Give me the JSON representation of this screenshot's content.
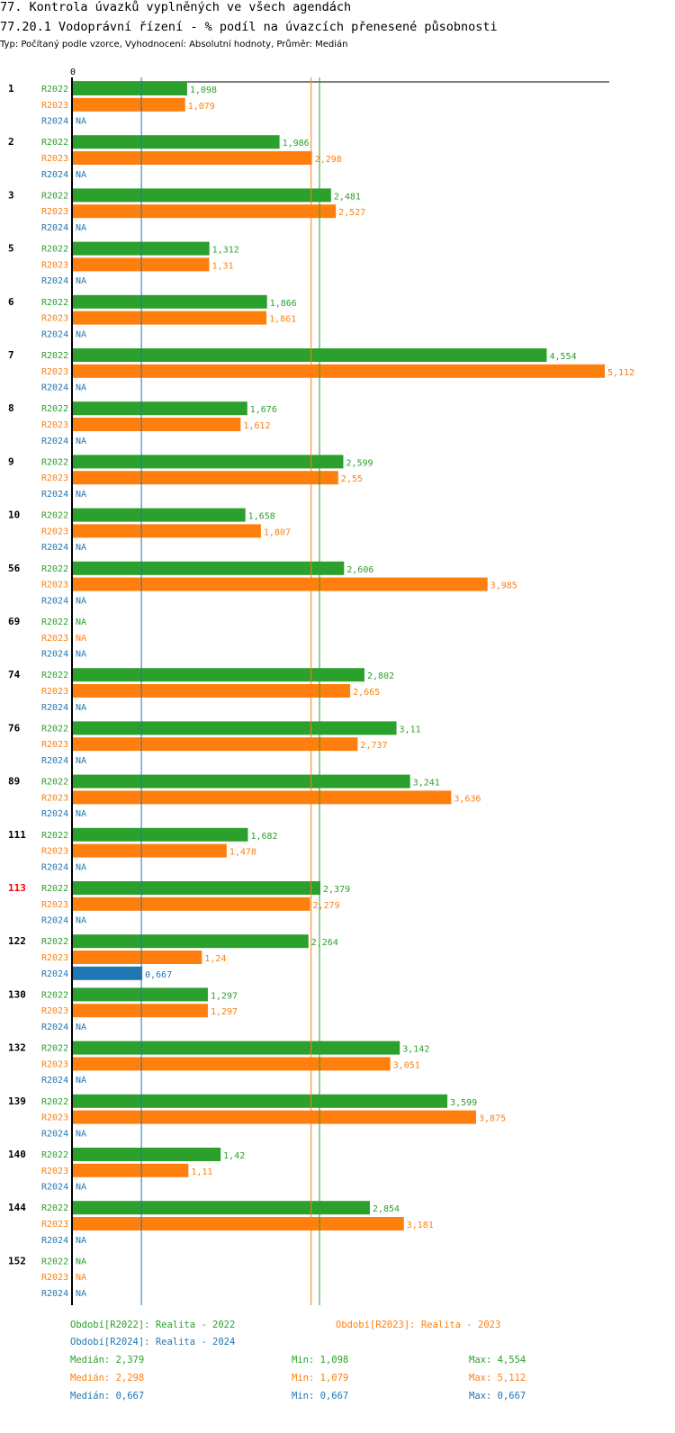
{
  "header": {
    "title": "77. Kontrola úvazků vyplněných ve všech agendách",
    "subtitle": "77.20.1 Vodoprávní řízení - % podíl na úvazcích přenesené působnosti",
    "type_line": "Typ: Počítaný podle vzorce, Vyhodnocení: Absolutní hodnoty, Průměr: Medián"
  },
  "chart_data": {
    "type": "bar",
    "orientation": "horizontal",
    "axis_zero_label": "0",
    "xlim": [
      0,
      5.112
    ],
    "colors": {
      "R2022": "#2ca02c",
      "R2023": "#ff7f0e",
      "R2024": "#1f77b4",
      "highlight": "#ff0000"
    },
    "highlight_group": "113",
    "na_label": "NA",
    "series_names": [
      "R2022",
      "R2023",
      "R2024"
    ],
    "medians": {
      "R2022": 2.379,
      "R2023": 2.298,
      "R2024": 0.667
    },
    "groups": [
      {
        "label": "1",
        "R2022": "1,098",
        "R2023": "1,079",
        "R2024": "NA"
      },
      {
        "label": "2",
        "R2022": "1,986",
        "R2023": "2,298",
        "R2024": "NA"
      },
      {
        "label": "3",
        "R2022": "2,481",
        "R2023": "2,527",
        "R2024": "NA"
      },
      {
        "label": "5",
        "R2022": "1,312",
        "R2023": "1,31",
        "R2024": "NA"
      },
      {
        "label": "6",
        "R2022": "1,866",
        "R2023": "1,861",
        "R2024": "NA"
      },
      {
        "label": "7",
        "R2022": "4,554",
        "R2023": "5,112",
        "R2024": "NA"
      },
      {
        "label": "8",
        "R2022": "1,676",
        "R2023": "1,612",
        "R2024": "NA"
      },
      {
        "label": "9",
        "R2022": "2,599",
        "R2023": "2,55",
        "R2024": "NA"
      },
      {
        "label": "10",
        "R2022": "1,658",
        "R2023": "1,807",
        "R2024": "NA"
      },
      {
        "label": "56",
        "R2022": "2,606",
        "R2023": "3,985",
        "R2024": "NA"
      },
      {
        "label": "69",
        "R2022": "NA",
        "R2023": "NA",
        "R2024": "NA"
      },
      {
        "label": "74",
        "R2022": "2,802",
        "R2023": "2,665",
        "R2024": "NA"
      },
      {
        "label": "76",
        "R2022": "3,11",
        "R2023": "2,737",
        "R2024": "NA"
      },
      {
        "label": "89",
        "R2022": "3,241",
        "R2023": "3,636",
        "R2024": "NA"
      },
      {
        "label": "111",
        "R2022": "1,682",
        "R2023": "1,478",
        "R2024": "NA"
      },
      {
        "label": "113",
        "R2022": "2,379",
        "R2023": "2,279",
        "R2024": "NA"
      },
      {
        "label": "122",
        "R2022": "2,264",
        "R2023": "1,24",
        "R2024": "0,667"
      },
      {
        "label": "130",
        "R2022": "1,297",
        "R2023": "1,297",
        "R2024": "NA"
      },
      {
        "label": "132",
        "R2022": "3,142",
        "R2023": "3,051",
        "R2024": "NA"
      },
      {
        "label": "139",
        "R2022": "3,599",
        "R2023": "3,875",
        "R2024": "NA"
      },
      {
        "label": "140",
        "R2022": "1,42",
        "R2023": "1,11",
        "R2024": "NA"
      },
      {
        "label": "144",
        "R2022": "2,854",
        "R2023": "3,181",
        "R2024": "NA"
      },
      {
        "label": "152",
        "R2022": "NA",
        "R2023": "NA",
        "R2024": "NA"
      }
    ]
  },
  "legend": {
    "r2022": "Období[R2022]: Realita - 2022",
    "r2023": "Období[R2023]: Realita - 2023",
    "r2024": "Období[R2024]: Realita - 2024",
    "stats": [
      {
        "median": "Medián: 2,379",
        "min": "Min: 1,098",
        "max": "Max: 4,554"
      },
      {
        "median": "Medián: 2,298",
        "min": "Min: 1,079",
        "max": "Max: 5,112"
      },
      {
        "median": "Medián: 0,667",
        "min": "Min: 0,667",
        "max": "Max: 0,667"
      }
    ]
  }
}
